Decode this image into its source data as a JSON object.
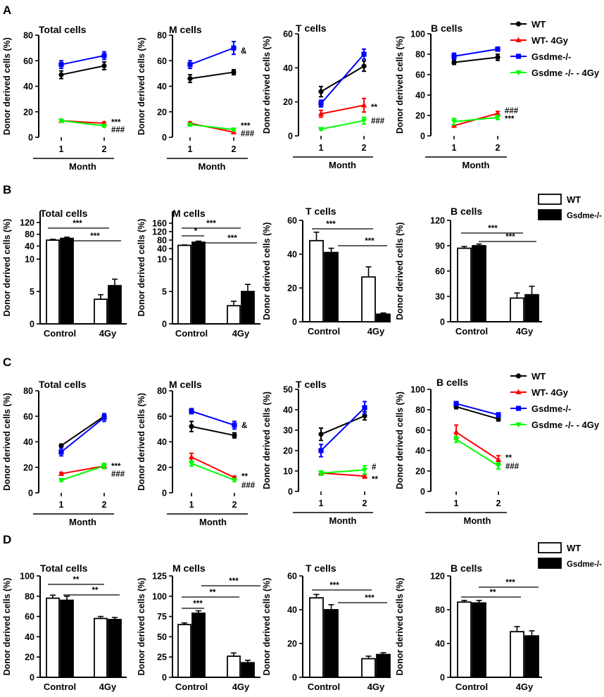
{
  "figure_labels": [
    "A",
    "B",
    "C",
    "D"
  ],
  "legend_line": {
    "entries": [
      {
        "label": "WT",
        "color": "#000000",
        "marker": "circle"
      },
      {
        "label": "WT- 4Gy",
        "color": "#ff0000",
        "marker": "triangle"
      },
      {
        "label": "Gsdme-/-",
        "color": "#0000ff",
        "marker": "square"
      },
      {
        "label": "Gsdme -/- - 4Gy",
        "color": "#00ff00",
        "marker": "triangle-down"
      }
    ]
  },
  "legend_bar": {
    "entries": [
      {
        "label": "WT",
        "fill": "white"
      },
      {
        "label": "Gsdme-/-",
        "fill": "black"
      }
    ]
  },
  "colors": {
    "wt": "#000000",
    "wt4gy": "#ff0000",
    "ko": "#0000ff",
    "ko4gy": "#00ff00"
  },
  "chart_data": [
    {
      "panel": "A",
      "type": "line",
      "title": "Total cells",
      "xlabel": "Month",
      "ylabel": "Donor derived cells (%)",
      "x": [
        "1",
        "2"
      ],
      "ylim": [
        0,
        80
      ],
      "yticks": [
        "0",
        "20",
        "40",
        "60",
        "80"
      ],
      "series": [
        {
          "name": "WT",
          "values": [
            49,
            56
          ],
          "err": [
            3,
            3
          ]
        },
        {
          "name": "WT- 4Gy",
          "values": [
            13,
            11
          ],
          "err": [
            1,
            1
          ]
        },
        {
          "name": "Gsdme-/-",
          "values": [
            57,
            64
          ],
          "err": [
            3,
            3
          ]
        },
        {
          "name": "Gsdme -/- - 4Gy",
          "values": [
            13,
            9
          ],
          "err": [
            1,
            1
          ]
        }
      ],
      "annotations": [
        {
          "text": "***",
          "x": "2",
          "y": 12
        },
        {
          "text": "###",
          "x": "2",
          "y": 6
        }
      ]
    },
    {
      "panel": "A",
      "type": "line",
      "title": "M cells",
      "xlabel": "Month",
      "ylabel": "Donor derived cells (%)",
      "x": [
        "1",
        "2"
      ],
      "ylim": [
        0,
        80
      ],
      "yticks": [
        "0",
        "20",
        "40",
        "60",
        "80"
      ],
      "series": [
        {
          "name": "WT",
          "values": [
            46,
            51
          ],
          "err": [
            3,
            2
          ]
        },
        {
          "name": "WT- 4Gy",
          "values": [
            11,
            4
          ],
          "err": [
            1,
            1
          ]
        },
        {
          "name": "Gsdme-/-",
          "values": [
            57,
            70
          ],
          "err": [
            3,
            5
          ]
        },
        {
          "name": "Gsdme -/- - 4Gy",
          "values": [
            10,
            6
          ],
          "err": [
            1,
            1
          ]
        }
      ],
      "annotations": [
        {
          "text": "&",
          "x": "2",
          "y": 68
        },
        {
          "text": "***",
          "x": "2",
          "y": 9
        },
        {
          "text": "###",
          "x": "2",
          "y": 3
        }
      ]
    },
    {
      "panel": "A",
      "type": "line",
      "title": "T cells",
      "xlabel": "Month",
      "ylabel": "Donor derived cells (%)",
      "x": [
        "1",
        "2"
      ],
      "ylim": [
        0,
        60
      ],
      "yticks": [
        "0",
        "20",
        "40",
        "60"
      ],
      "series": [
        {
          "name": "WT",
          "values": [
            26,
            41
          ],
          "err": [
            3,
            3
          ]
        },
        {
          "name": "WT- 4Gy",
          "values": [
            13,
            18
          ],
          "err": [
            2,
            4
          ]
        },
        {
          "name": "Gsdme-/-",
          "values": [
            19,
            48
          ],
          "err": [
            2,
            3
          ]
        },
        {
          "name": "Gsdme -/- - 4Gy",
          "values": [
            4,
            9
          ],
          "err": [
            0.5,
            2
          ]
        }
      ],
      "annotations": [
        {
          "text": "**",
          "x": "2",
          "y": 17
        },
        {
          "text": "###",
          "x": "2",
          "y": 9
        }
      ]
    },
    {
      "panel": "A",
      "type": "line",
      "title": "B cells",
      "xlabel": "Month",
      "ylabel": "Donor derived cells (%)",
      "x": [
        "1",
        "2"
      ],
      "ylim": [
        0,
        100
      ],
      "yticks": [
        "0",
        "20",
        "40",
        "60",
        "80",
        "100"
      ],
      "series": [
        {
          "name": "WT",
          "values": [
            72,
            77
          ],
          "err": [
            2,
            3
          ]
        },
        {
          "name": "WT- 4Gy",
          "values": [
            10,
            22
          ],
          "err": [
            1,
            2
          ]
        },
        {
          "name": "Gsdme-/-",
          "values": [
            78,
            85
          ],
          "err": [
            3,
            2
          ]
        },
        {
          "name": "Gsdme -/- - 4Gy",
          "values": [
            14,
            18
          ],
          "err": [
            3,
            2
          ]
        }
      ],
      "annotations": [
        {
          "text": "###",
          "x": "2",
          "y": 25
        },
        {
          "text": "***",
          "x": "2",
          "y": 17
        }
      ]
    },
    {
      "panel": "B",
      "type": "bar",
      "title": "Total cells",
      "ylabel": "Donor derived cells (%)",
      "categories": [
        "Control",
        "4Gy"
      ],
      "yticks": [
        "0",
        "5",
        "10",
        "40",
        "80",
        "120"
      ],
      "series": [
        {
          "name": "WT",
          "values": [
            60,
            3.8
          ],
          "err": [
            3,
            0.7
          ]
        },
        {
          "name": "Gsdme-/-",
          "values": [
            66,
            5.9
          ],
          "err": [
            4,
            1
          ]
        }
      ],
      "annotations": [
        "***",
        "***"
      ]
    },
    {
      "panel": "B",
      "type": "bar",
      "title": "M cells",
      "ylabel": "Donor derived cells (%)",
      "categories": [
        "Control",
        "4Gy"
      ],
      "yticks": [
        "0",
        "5",
        "10",
        "40",
        "80",
        "120",
        "160"
      ],
      "series": [
        {
          "name": "WT",
          "values": [
            55,
            2.8
          ],
          "err": [
            2,
            0.7
          ]
        },
        {
          "name": "Gsdme-/-",
          "values": [
            70,
            5
          ],
          "err": [
            5,
            1.1
          ]
        }
      ],
      "annotations": [
        "***",
        "*",
        "***"
      ]
    },
    {
      "panel": "B",
      "type": "bar",
      "title": "T cells",
      "ylabel": "Donor derived cells (%)",
      "categories": [
        "Control",
        "4Gy"
      ],
      "ylim": [
        0,
        60
      ],
      "yticks": [
        "0",
        "20",
        "40",
        "60"
      ],
      "series": [
        {
          "name": "WT",
          "values": [
            48,
            26.5
          ],
          "err": [
            5,
            6
          ]
        },
        {
          "name": "Gsdme-/-",
          "values": [
            41,
            4.5
          ],
          "err": [
            2.5,
            0.7
          ]
        }
      ],
      "annotations": [
        "***",
        "***"
      ]
    },
    {
      "panel": "B",
      "type": "bar",
      "title": "B cells",
      "ylabel": "Donor derived cells (%)",
      "categories": [
        "Control",
        "4Gy"
      ],
      "ylim": [
        0,
        120
      ],
      "yticks": [
        "0",
        "30",
        "60",
        "90",
        "120"
      ],
      "series": [
        {
          "name": "WT",
          "values": [
            87,
            28
          ],
          "err": [
            2,
            6
          ]
        },
        {
          "name": "Gsdme-/-",
          "values": [
            90,
            32
          ],
          "err": [
            2,
            10
          ]
        }
      ],
      "annotations": [
        "***",
        "***"
      ]
    },
    {
      "panel": "C",
      "type": "line",
      "title": "Total cells",
      "xlabel": "Month",
      "ylabel": "Donor derived cells (%)",
      "x": [
        "1",
        "2"
      ],
      "ylim": [
        0,
        80
      ],
      "yticks": [
        "0",
        "20",
        "40",
        "60",
        "80"
      ],
      "series": [
        {
          "name": "WT",
          "values": [
            37,
            60
          ],
          "err": [
            1,
            2
          ]
        },
        {
          "name": "WT- 4Gy",
          "values": [
            15,
            21
          ],
          "err": [
            1,
            2
          ]
        },
        {
          "name": "Gsdme-/-",
          "values": [
            32,
            59
          ],
          "err": [
            3,
            3
          ]
        },
        {
          "name": "Gsdme -/- - 4Gy",
          "values": [
            10,
            21
          ],
          "err": [
            1,
            2
          ]
        }
      ],
      "annotations": [
        {
          "text": "***",
          "x": "2",
          "y": 21
        },
        {
          "text": "###",
          "x": "2",
          "y": 15
        }
      ]
    },
    {
      "panel": "C",
      "type": "line",
      "title": "M cells",
      "xlabel": "Month",
      "ylabel": "Donor derived cells (%)",
      "x": [
        "1",
        "2"
      ],
      "ylim": [
        0,
        80
      ],
      "yticks": [
        "0",
        "20",
        "40",
        "60",
        "80"
      ],
      "series": [
        {
          "name": "WT",
          "values": [
            52,
            45
          ],
          "err": [
            4,
            2
          ]
        },
        {
          "name": "WT- 4Gy",
          "values": [
            28,
            12
          ],
          "err": [
            3,
            1
          ]
        },
        {
          "name": "Gsdme-/-",
          "values": [
            64,
            53
          ],
          "err": [
            2,
            3
          ]
        },
        {
          "name": "Gsdme -/- - 4Gy",
          "values": [
            23,
            10
          ],
          "err": [
            2,
            1
          ]
        }
      ],
      "annotations": [
        {
          "text": "&",
          "x": "2",
          "y": 53
        },
        {
          "text": "**",
          "x": "2",
          "y": 13
        },
        {
          "text": "###",
          "x": "2",
          "y": 6
        }
      ]
    },
    {
      "panel": "C",
      "type": "line",
      "title": "T cells",
      "xlabel": "Month",
      "ylabel": "Donor derived cells (%)",
      "x": [
        "1",
        "2"
      ],
      "ylim": [
        0,
        50
      ],
      "yticks": [
        "0",
        "10",
        "20",
        "30",
        "40",
        "50"
      ],
      "series": [
        {
          "name": "WT",
          "values": [
            28,
            37
          ],
          "err": [
            3,
            2
          ]
        },
        {
          "name": "WT- 4Gy",
          "values": [
            9,
            7.5
          ],
          "err": [
            1,
            1
          ]
        },
        {
          "name": "Gsdme-/-",
          "values": [
            20,
            41
          ],
          "err": [
            3,
            3
          ]
        },
        {
          "name": "Gsdme -/- - 4Gy",
          "values": [
            9,
            10.5
          ],
          "err": [
            1,
            2
          ]
        }
      ],
      "annotations": [
        {
          "text": "#",
          "x": "2",
          "y": 12
        },
        {
          "text": "**",
          "x": "2",
          "y": 6
        }
      ]
    },
    {
      "panel": "C",
      "type": "line",
      "title": "B cells",
      "xlabel": "Month",
      "ylabel": "Donor derived cells (%)",
      "x": [
        "1",
        "2"
      ],
      "ylim": [
        0,
        100
      ],
      "yticks": [
        "0",
        "20",
        "40",
        "60",
        "80",
        "100"
      ],
      "series": [
        {
          "name": "WT",
          "values": [
            83,
            71
          ],
          "err": [
            2,
            2
          ]
        },
        {
          "name": "WT- 4Gy",
          "values": [
            58,
            31
          ],
          "err": [
            7,
            4
          ]
        },
        {
          "name": "Gsdme-/-",
          "values": [
            86,
            75
          ],
          "err": [
            2,
            2
          ]
        },
        {
          "name": "Gsdme -/- - 4Gy",
          "values": [
            51,
            25
          ],
          "err": [
            3,
            3
          ]
        }
      ],
      "annotations": [
        {
          "text": "**",
          "x": "2",
          "y": 33
        },
        {
          "text": "###",
          "x": "2",
          "y": 25
        }
      ]
    },
    {
      "panel": "D",
      "type": "bar",
      "title": "Total cells",
      "ylabel": "Donor derived cells (%)",
      "categories": [
        "Control",
        "4Gy"
      ],
      "ylim": [
        0,
        100
      ],
      "yticks": [
        "0",
        "20",
        "40",
        "60",
        "80",
        "100"
      ],
      "series": [
        {
          "name": "WT",
          "values": [
            78,
            58
          ],
          "err": [
            3,
            2
          ]
        },
        {
          "name": "Gsdme-/-",
          "values": [
            76,
            57
          ],
          "err": [
            4,
            2
          ]
        }
      ],
      "annotations": [
        "**",
        "**"
      ]
    },
    {
      "panel": "D",
      "type": "bar",
      "title": "M cells",
      "ylabel": "Donor derived cells (%)",
      "categories": [
        "Control",
        "4Gy"
      ],
      "ylim": [
        0,
        125
      ],
      "yticks": [
        "0",
        "25",
        "50",
        "75",
        "100",
        "125"
      ],
      "series": [
        {
          "name": "WT",
          "values": [
            65,
            26
          ],
          "err": [
            2,
            4
          ]
        },
        {
          "name": "Gsdme-/-",
          "values": [
            79,
            18
          ],
          "err": [
            3,
            3
          ]
        }
      ],
      "annotations": [
        "***",
        "**",
        "***"
      ]
    },
    {
      "panel": "D",
      "type": "bar",
      "title": "T cells",
      "ylabel": "Donor derived cells (%)",
      "categories": [
        "Control",
        "4Gy"
      ],
      "ylim": [
        0,
        60
      ],
      "yticks": [
        "0",
        "20",
        "40",
        "60"
      ],
      "series": [
        {
          "name": "WT",
          "values": [
            47,
            11
          ],
          "err": [
            2,
            1.5
          ]
        },
        {
          "name": "Gsdme-/-",
          "values": [
            40,
            13.5
          ],
          "err": [
            3,
            1
          ]
        }
      ],
      "annotations": [
        "***",
        "***"
      ]
    },
    {
      "panel": "D",
      "type": "bar",
      "title": "B cells",
      "ylabel": "Donor derived cells (%)",
      "categories": [
        "Control",
        "4Gy"
      ],
      "ylim": [
        0,
        120
      ],
      "yticks": [
        "0",
        "40",
        "80",
        "120"
      ],
      "series": [
        {
          "name": "WT",
          "values": [
            89,
            54
          ],
          "err": [
            2,
            6
          ]
        },
        {
          "name": "Gsdme-/-",
          "values": [
            88,
            49
          ],
          "err": [
            3,
            6
          ]
        }
      ],
      "annotations": [
        "***",
        "**"
      ]
    }
  ]
}
